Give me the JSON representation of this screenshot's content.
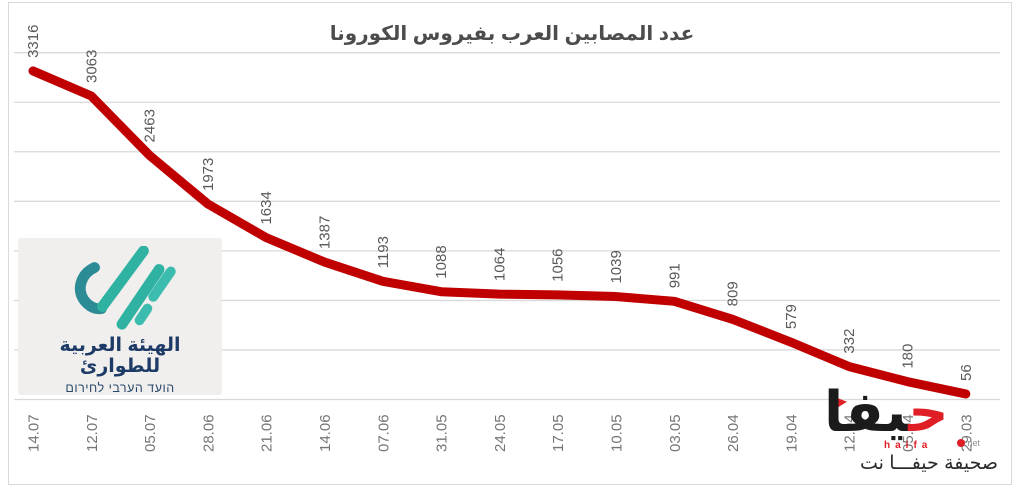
{
  "chart_data": {
    "type": "line",
    "title": "عدد المصابين العرب بفيروس الكورونا",
    "categories": [
      "14.07",
      "12.07",
      "05.07",
      "28.06",
      "21.06",
      "14.06",
      "07.06",
      "31.05",
      "24.05",
      "17.05",
      "10.05",
      "03.05",
      "26.04",
      "19.04",
      "12.04",
      "05.04",
      "29.03"
    ],
    "values": [
      3316,
      3063,
      2463,
      1973,
      1634,
      1387,
      1193,
      1088,
      1064,
      1056,
      1039,
      991,
      809,
      579,
      332,
      180,
      56
    ],
    "xlabel": "",
    "ylabel": "",
    "ylim": [
      0,
      3500
    ],
    "gridline_step": 500,
    "grid": true,
    "legend_position": "none",
    "value_labels_rotated": true,
    "tick_labels_rotated": true,
    "line_color": "#c00000",
    "label_color": "#595959",
    "tick_color": "#757575",
    "grid_color": "#d9d9d9"
  },
  "logo_card": {
    "title_arabic": "الهيئة العربية للطوارئ",
    "subtitle_hebrew": "הועד הערבי לחירום",
    "bg_color": "#f0efee",
    "text_color": "#1d3b66",
    "mark_color_dark": "#2c8c95",
    "mark_color_light": "#2fb2a1",
    "mark_color_lighter": "#3cbcae"
  },
  "watermark": {
    "word_first_letter": "ح",
    "word_rest": "يفا",
    "dotted_label": "haifa",
    "net_label": "net",
    "caption": "صحيفة حيفـــا نت",
    "red": "#e01e25",
    "black": "#1b1b1b"
  }
}
